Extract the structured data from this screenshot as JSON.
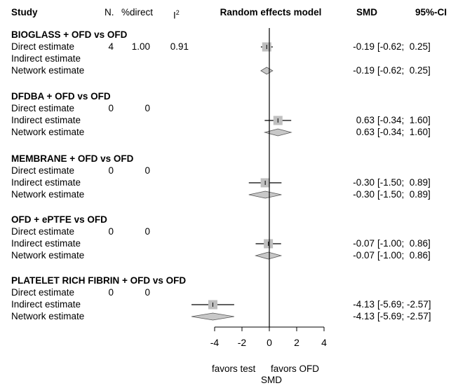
{
  "headers": {
    "study": "Study",
    "n": "N.",
    "direct_pct": "%direct",
    "i2": "I",
    "i2_sup": "2",
    "model": "Random effects model",
    "smd": "SMD",
    "ci": "95%-CI"
  },
  "footer": {
    "favors_left": "favors test",
    "favors_right": "favors OFD",
    "axis_title": "SMD"
  },
  "groups": [
    {
      "title": "BIOGLASS + OFD vs OFD",
      "rows": [
        {
          "label": "Direct estimate",
          "n": "4",
          "pct": "1.00",
          "i2": "0.91",
          "est": -0.19,
          "lo": -0.62,
          "hi": 0.25,
          "smd": "-0.19",
          "ci": "[-0.62;  0.25]",
          "kind": "square"
        },
        {
          "label": "Indirect estimate",
          "n": "",
          "pct": "",
          "i2": "",
          "kind": "none"
        },
        {
          "label": "Network estimate",
          "n": "",
          "pct": "",
          "i2": "",
          "est": -0.19,
          "lo": -0.62,
          "hi": 0.25,
          "smd": "-0.19",
          "ci": "[-0.62;  0.25]",
          "kind": "diamond"
        }
      ]
    },
    {
      "title": "DFDBA + OFD vs OFD",
      "rows": [
        {
          "label": "Direct estimate",
          "n": "0",
          "pct": "0",
          "i2": "",
          "kind": "none"
        },
        {
          "label": "Indirect estimate",
          "n": "",
          "pct": "",
          "i2": "",
          "est": 0.63,
          "lo": -0.34,
          "hi": 1.6,
          "smd": "0.63",
          "ci": "[-0.34;  1.60]",
          "kind": "square"
        },
        {
          "label": "Network estimate",
          "n": "",
          "pct": "",
          "i2": "",
          "est": 0.63,
          "lo": -0.34,
          "hi": 1.6,
          "smd": "0.63",
          "ci": "[-0.34;  1.60]",
          "kind": "diamond"
        }
      ]
    },
    {
      "title": "MEMBRANE + OFD vs OFD",
      "rows": [
        {
          "label": "Direct estimate",
          "n": "0",
          "pct": "0",
          "i2": "",
          "kind": "none"
        },
        {
          "label": "Indirect estimate",
          "n": "",
          "pct": "",
          "i2": "",
          "est": -0.3,
          "lo": -1.5,
          "hi": 0.89,
          "smd": "-0.30",
          "ci": "[-1.50;  0.89]",
          "kind": "square"
        },
        {
          "label": "Network estimate",
          "n": "",
          "pct": "",
          "i2": "",
          "est": -0.3,
          "lo": -1.5,
          "hi": 0.89,
          "smd": "-0.30",
          "ci": "[-1.50;  0.89]",
          "kind": "diamond"
        }
      ]
    },
    {
      "title": "OFD + ePTFE vs OFD",
      "rows": [
        {
          "label": "Direct estimate",
          "n": "0",
          "pct": "0",
          "i2": "",
          "kind": "none"
        },
        {
          "label": "Indirect estimate",
          "n": "",
          "pct": "",
          "i2": "",
          "est": -0.07,
          "lo": -1.0,
          "hi": 0.86,
          "smd": "-0.07",
          "ci": "[-1.00;  0.86]",
          "kind": "square"
        },
        {
          "label": "Network estimate",
          "n": "",
          "pct": "",
          "i2": "",
          "est": -0.07,
          "lo": -1.0,
          "hi": 0.86,
          "smd": "-0.07",
          "ci": "[-1.00;  0.86]",
          "kind": "diamond"
        }
      ]
    },
    {
      "title": "PLATELET RICH FIBRIN + OFD vs OFD",
      "rows": [
        {
          "label": "Direct estimate",
          "n": "0",
          "pct": "0",
          "i2": "",
          "kind": "none"
        },
        {
          "label": "Indirect estimate",
          "n": "",
          "pct": "",
          "i2": "",
          "est": -4.13,
          "lo": -5.69,
          "hi": -2.57,
          "smd": "-4.13",
          "ci": "[-5.69; -2.57]",
          "kind": "square"
        },
        {
          "label": "Network estimate",
          "n": "",
          "pct": "",
          "i2": "",
          "est": -4.13,
          "lo": -5.69,
          "hi": -2.57,
          "smd": "-4.13",
          "ci": "[-5.69; -2.57]",
          "kind": "diamond"
        }
      ]
    }
  ],
  "chart_data": {
    "type": "forest",
    "xlabel": "SMD",
    "xlim": [
      -4,
      4
    ],
    "xticks": [
      -4,
      -2,
      0,
      2,
      4
    ],
    "reference_line": 0,
    "colors": {
      "square": "#bfbfbf",
      "diamond": "#c8c8c8",
      "line": "#000000"
    },
    "series": [
      {
        "comparison": "BIOGLASS + OFD vs OFD",
        "direct": {
          "smd": -0.19,
          "lo": -0.62,
          "hi": 0.25
        },
        "indirect": null,
        "network": {
          "smd": -0.19,
          "lo": -0.62,
          "hi": 0.25
        }
      },
      {
        "comparison": "DFDBA + OFD vs OFD",
        "direct": null,
        "indirect": {
          "smd": 0.63,
          "lo": -0.34,
          "hi": 1.6
        },
        "network": {
          "smd": 0.63,
          "lo": -0.34,
          "hi": 1.6
        }
      },
      {
        "comparison": "MEMBRANE + OFD vs OFD",
        "direct": null,
        "indirect": {
          "smd": -0.3,
          "lo": -1.5,
          "hi": 0.89
        },
        "network": {
          "smd": -0.3,
          "lo": -1.5,
          "hi": 0.89
        }
      },
      {
        "comparison": "OFD + ePTFE vs OFD",
        "direct": null,
        "indirect": {
          "smd": -0.07,
          "lo": -1.0,
          "hi": 0.86
        },
        "network": {
          "smd": -0.07,
          "lo": -1.0,
          "hi": 0.86
        }
      },
      {
        "comparison": "PLATELET RICH FIBRIN + OFD vs OFD",
        "direct": null,
        "indirect": {
          "smd": -4.13,
          "lo": -5.69,
          "hi": -2.57
        },
        "network": {
          "smd": -4.13,
          "lo": -5.69,
          "hi": -2.57
        }
      }
    ]
  }
}
